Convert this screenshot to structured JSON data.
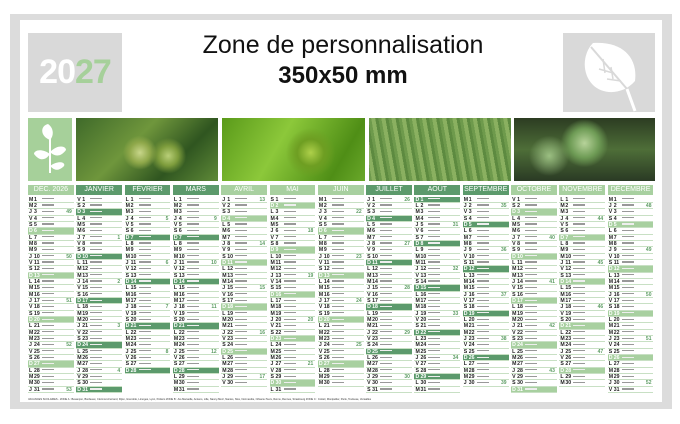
{
  "header": {
    "year_prefix": "20",
    "year_suffix": "27",
    "title": "Zone de personnalisation",
    "subtitle": "350x50 mm"
  },
  "colors": {
    "dark_green": "#5c9a6c",
    "light_green": "#a8d0a0",
    "frame": "#dcdcdc"
  },
  "year": 2027,
  "months": [
    {
      "name": "DEC. 2026",
      "y": 2026,
      "m": 11,
      "tone": "light"
    },
    {
      "name": "JANVIER",
      "y": 2027,
      "m": 0,
      "tone": "dark"
    },
    {
      "name": "FÉVRIER",
      "y": 2027,
      "m": 1,
      "tone": "dark"
    },
    {
      "name": "MARS",
      "y": 2027,
      "m": 2,
      "tone": "dark"
    },
    {
      "name": "AVRIL",
      "y": 2027,
      "m": 3,
      "tone": "light"
    },
    {
      "name": "MAI",
      "y": 2027,
      "m": 4,
      "tone": "light"
    },
    {
      "name": "JUIN",
      "y": 2027,
      "m": 5,
      "tone": "light"
    },
    {
      "name": "JUILLET",
      "y": 2027,
      "m": 6,
      "tone": "dark"
    },
    {
      "name": "AOÛT",
      "y": 2027,
      "m": 7,
      "tone": "dark"
    },
    {
      "name": "SEPTEMBRE",
      "y": 2027,
      "m": 8,
      "tone": "dark"
    },
    {
      "name": "OCTOBRE",
      "y": 2027,
      "m": 9,
      "tone": "light"
    },
    {
      "name": "NOVEMBRE",
      "y": 2027,
      "m": 10,
      "tone": "light"
    },
    {
      "name": "DÉCEMBRE",
      "y": 2027,
      "m": 11,
      "tone": "light"
    }
  ],
  "weekday_letters": [
    "D",
    "L",
    "M",
    "M",
    "J",
    "V",
    "S"
  ],
  "footer": "VACANCES SCOLAIRES - ZONE A : Besançon, Bordeaux, Clermont-Ferrand, Dijon, Grenoble, Limoges, Lyon, Poitiers  ZONE B : Aix-Marseille, Amiens, Lille, Nancy-Metz, Nantes, Nice, Normandie, Orléans-Tours, Reims, Rennes, Strasbourg  ZONE C : Créteil, Montpellier, Paris, Toulouse, Versailles"
}
